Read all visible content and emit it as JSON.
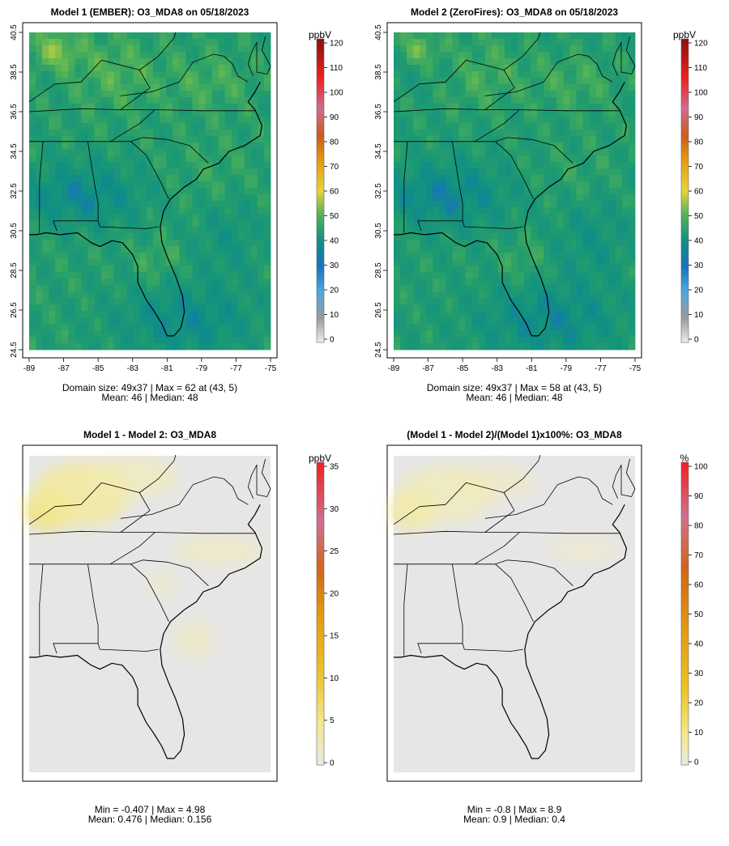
{
  "chart_data": [
    {
      "type": "heatmap",
      "title": "Model 1 (EMBER): O3_MDA8 on 05/18/2023",
      "colorbar": {
        "unit": "ppbV",
        "range": [
          0,
          120
        ],
        "ticks": [
          "0",
          "10",
          "20",
          "30",
          "40",
          "50",
          "60",
          "70",
          "80",
          "90",
          "100",
          "110",
          "120"
        ]
      },
      "x_ticks": [
        "-89",
        "-87",
        "-85",
        "-83",
        "-81",
        "-79",
        "-77",
        "-75"
      ],
      "y_ticks": [
        "24.5",
        "26.5",
        "28.5",
        "30.5",
        "32.5",
        "34.5",
        "36.5",
        "38.5",
        "40.5"
      ],
      "grid": [
        49,
        37
      ],
      "stats_line1": "Domain size: 49x37 | Max = 62 at (43, 5)",
      "stats_line2": "Mean: 46 |  Median: 48",
      "max": 62,
      "mean": 46,
      "median": 48
    },
    {
      "type": "heatmap",
      "title": "Model 2 (ZeroFires): O3_MDA8 on 05/18/2023",
      "colorbar": {
        "unit": "ppbV",
        "range": [
          0,
          120
        ],
        "ticks": [
          "0",
          "10",
          "20",
          "30",
          "40",
          "50",
          "60",
          "70",
          "80",
          "90",
          "100",
          "110",
          "120"
        ]
      },
      "x_ticks": [
        "-89",
        "-87",
        "-85",
        "-83",
        "-81",
        "-79",
        "-77",
        "-75"
      ],
      "y_ticks": [
        "24.5",
        "26.5",
        "28.5",
        "30.5",
        "32.5",
        "34.5",
        "36.5",
        "38.5",
        "40.5"
      ],
      "grid": [
        49,
        37
      ],
      "stats_line1": "Domain size: 49x37 | Max = 58 at (43, 5)",
      "stats_line2": "Mean: 46 |  Median: 48",
      "max": 58,
      "mean": 46,
      "median": 48
    },
    {
      "type": "heatmap",
      "title": "Model 1 - Model 2: O3_MDA8",
      "colorbar": {
        "unit": "ppbV",
        "range": [
          0,
          35
        ],
        "ticks": [
          "0",
          "5",
          "10",
          "15",
          "20",
          "25",
          "30",
          "35"
        ]
      },
      "stats_line1": "Min = -0.407 | Max = 4.98",
      "stats_line2": "Mean: 0.476 |  Median: 0.156",
      "min": -0.407,
      "max": 4.98,
      "mean": 0.476,
      "median": 0.156
    },
    {
      "type": "heatmap",
      "title": "(Model 1 - Model 2)/(Model 1)x100%: O3_MDA8",
      "colorbar": {
        "unit": "%",
        "range": [
          0,
          100
        ],
        "ticks": [
          "0",
          "10",
          "20",
          "30",
          "40",
          "50",
          "60",
          "70",
          "80",
          "90",
          "100"
        ]
      },
      "stats_line1": "Min = -0.8 | Max = 8.9",
      "stats_line2": "Mean: 0.9 |  Median: 0.4",
      "min": -0.8,
      "max": 8.9,
      "mean": 0.9,
      "median": 0.4
    }
  ]
}
